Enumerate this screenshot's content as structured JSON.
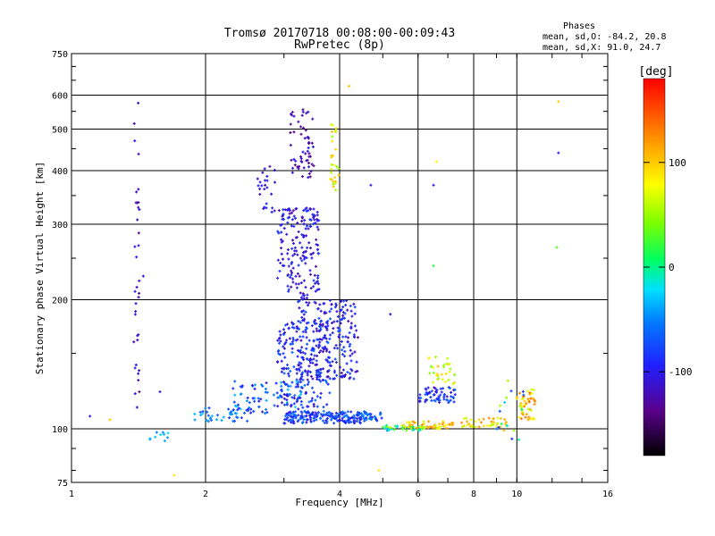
{
  "chart_data": {
    "type": "scatter",
    "title": "Tromsø 20170718 00:08:00-00:09:43",
    "subtitle": "RwPretec (8p)",
    "xlabel": "Frequency [MHz]",
    "ylabel": "Stationary phase Virtual Height [km]",
    "x_scale": "log",
    "y_scale": "log",
    "xlim": [
      1,
      16
    ],
    "ylim": [
      75,
      750
    ],
    "x_ticks": [
      1,
      2,
      4,
      6,
      8,
      10,
      16
    ],
    "y_ticks": [
      75,
      100,
      200,
      300,
      400,
      500,
      600,
      750
    ],
    "grid": true,
    "phases_box": {
      "title": "Phases",
      "line1": "mean, sd,O: -84.2, 20.8",
      "line2": "mean, sd,X:  91.0, 24.7"
    },
    "colorbar": {
      "label": "[deg]",
      "range": [
        -180,
        180
      ],
      "ticks": [
        -100,
        0,
        100
      ],
      "colormap": "rainbow"
    },
    "clusters": [
      {
        "fmin": 1.38,
        "fmax": 1.42,
        "hmin": 95,
        "hmax": 580,
        "pmin": -130,
        "pmax": -95,
        "n": 35
      },
      {
        "fmin": 1.5,
        "fmax": 1.68,
        "hmin": 93,
        "hmax": 99,
        "pmin": -60,
        "pmax": -20,
        "n": 10
      },
      {
        "fmin": 1.82,
        "fmax": 2.5,
        "hmin": 104,
        "hmax": 112,
        "pmin": -90,
        "pmax": -30,
        "n": 35
      },
      {
        "fmin": 2.3,
        "fmax": 3.3,
        "hmin": 108,
        "hmax": 130,
        "pmin": -110,
        "pmax": -20,
        "n": 90
      },
      {
        "fmin": 3.0,
        "fmax": 4.6,
        "hmin": 103,
        "hmax": 110,
        "pmin": -110,
        "pmax": -50,
        "n": 180
      },
      {
        "fmin": 2.9,
        "fmax": 3.8,
        "hmin": 112,
        "hmax": 180,
        "pmin": -120,
        "pmax": -60,
        "n": 200
      },
      {
        "fmin": 3.2,
        "fmax": 4.4,
        "hmin": 130,
        "hmax": 200,
        "pmin": -125,
        "pmax": -70,
        "n": 220
      },
      {
        "fmin": 2.9,
        "fmax": 3.6,
        "hmin": 200,
        "hmax": 330,
        "pmin": -125,
        "pmax": -80,
        "n": 180
      },
      {
        "fmin": 2.6,
        "fmax": 2.9,
        "hmin": 320,
        "hmax": 410,
        "pmin": -130,
        "pmax": -90,
        "n": 25
      },
      {
        "fmin": 3.1,
        "fmax": 3.5,
        "hmin": 380,
        "hmax": 560,
        "pmin": -140,
        "pmax": -100,
        "n": 60
      },
      {
        "fmin": 3.8,
        "fmax": 4.0,
        "hmin": 360,
        "hmax": 520,
        "pmin": 40,
        "pmax": 110,
        "n": 30
      },
      {
        "fmin": 4.5,
        "fmax": 5.0,
        "hmin": 104,
        "hmax": 109,
        "pmin": -100,
        "pmax": -40,
        "n": 30
      },
      {
        "fmin": 5.0,
        "fmax": 6.2,
        "hmin": 99,
        "hmax": 102,
        "pmin": -60,
        "pmax": 60,
        "n": 45
      },
      {
        "fmin": 5.5,
        "fmax": 7.2,
        "hmin": 100,
        "hmax": 104,
        "pmin": 60,
        "pmax": 130,
        "n": 50
      },
      {
        "fmin": 6.0,
        "fmax": 7.3,
        "hmin": 115,
        "hmax": 125,
        "pmin": -120,
        "pmax": -60,
        "n": 60
      },
      {
        "fmin": 6.3,
        "fmax": 7.3,
        "hmin": 125,
        "hmax": 150,
        "pmin": 40,
        "pmax": 110,
        "n": 30
      },
      {
        "fmin": 7.5,
        "fmax": 9.5,
        "hmin": 101,
        "hmax": 106,
        "pmin": 50,
        "pmax": 130,
        "n": 40
      },
      {
        "fmin": 10.0,
        "fmax": 11.0,
        "hmin": 105,
        "hmax": 125,
        "pmin": 60,
        "pmax": 140,
        "n": 50
      },
      {
        "fmin": 9.0,
        "fmax": 10.6,
        "hmin": 92,
        "hmax": 135,
        "pmin": -110,
        "pmax": 120,
        "n": 20
      }
    ],
    "isolated_points": [
      {
        "f": 1.1,
        "h": 107,
        "phase": -100
      },
      {
        "f": 1.22,
        "h": 105,
        "phase": 100
      },
      {
        "f": 1.42,
        "h": 122,
        "phase": -140
      },
      {
        "f": 1.45,
        "h": 227,
        "phase": -100
      },
      {
        "f": 1.58,
        "h": 122,
        "phase": -110
      },
      {
        "f": 1.7,
        "h": 78,
        "phase": 90
      },
      {
        "f": 4.2,
        "h": 630,
        "phase": 100
      },
      {
        "f": 6.5,
        "h": 370,
        "phase": -110
      },
      {
        "f": 6.6,
        "h": 420,
        "phase": 80
      },
      {
        "f": 6.5,
        "h": 240,
        "phase": 20
      },
      {
        "f": 12.4,
        "h": 440,
        "phase": -100
      },
      {
        "f": 12.4,
        "h": 580,
        "phase": 100
      },
      {
        "f": 12.3,
        "h": 265,
        "phase": 30
      },
      {
        "f": 5.2,
        "h": 185,
        "phase": -110
      },
      {
        "f": 4.7,
        "h": 370,
        "phase": -110
      },
      {
        "f": 4.9,
        "h": 80,
        "phase": 90
      }
    ]
  }
}
